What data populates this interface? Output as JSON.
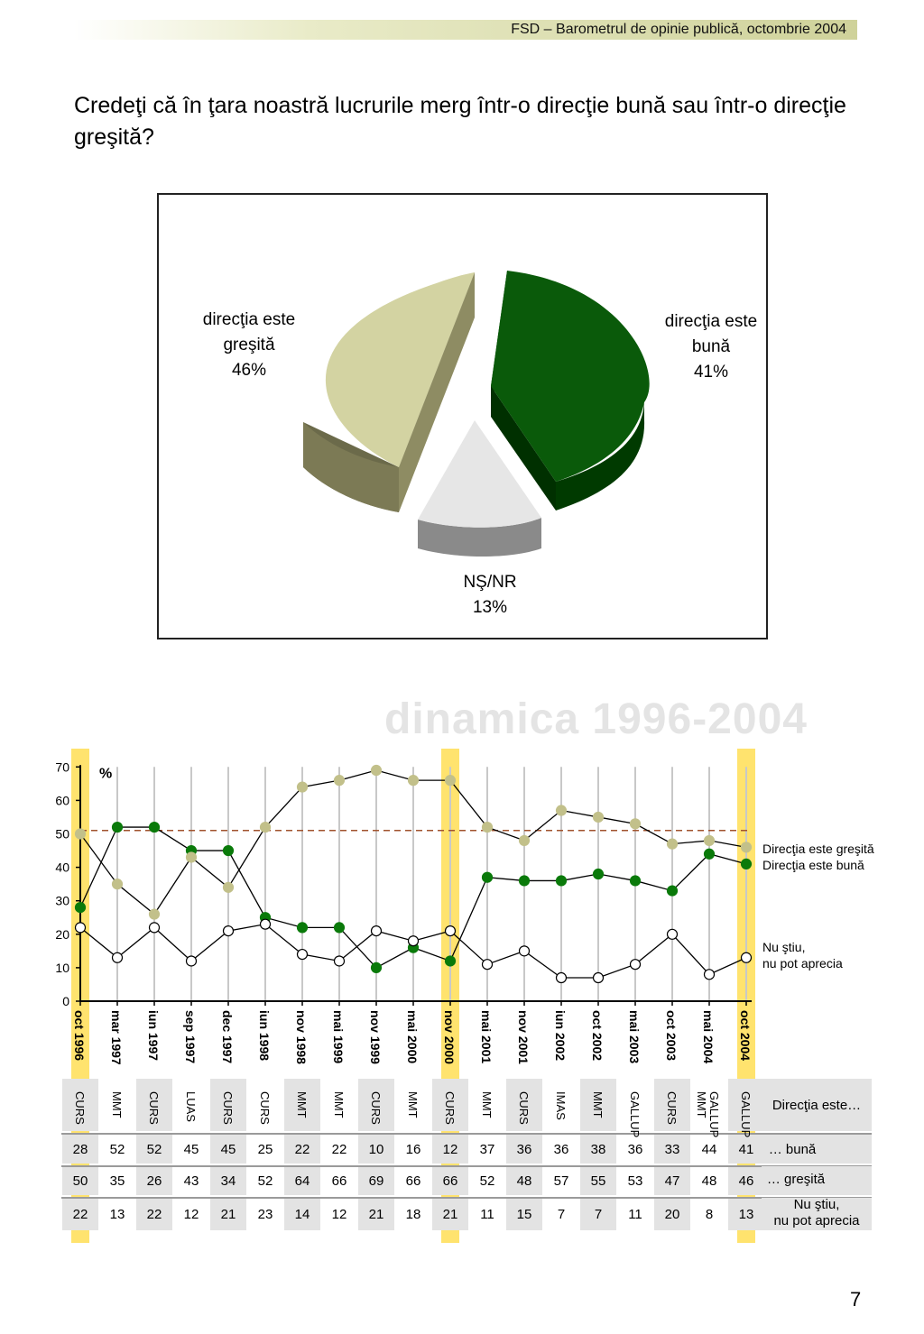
{
  "header": {
    "text": "FSD  –  Barometrul de opinie publică, octombrie 2004"
  },
  "question": "Credeţi că în ţara noastră lucrurile merg într-o direcţie bună sau într-o direcţie greşită?",
  "pie": {
    "labels": {
      "gresita": [
        "direcţia este",
        "greşită",
        "46%"
      ],
      "buna": [
        "direcţia este",
        "bună",
        "41%"
      ],
      "nsnr": [
        "NŞ/NR",
        "13%"
      ]
    }
  },
  "dynamics_title": "dinamica 1996-2004",
  "legend": {
    "gresita": "Direcţia este greşită",
    "buna": "Direcţia este bună",
    "nustiu_1": "Nu ştiu,",
    "nustiu_2": "nu pot aprecia"
  },
  "table_labels": {
    "header": "Direcţia este…",
    "buna": "… bună",
    "gresita": "… greşită",
    "nustiu_1": "Nu ştiu,",
    "nustiu_2": "nu pot aprecia"
  },
  "page_number": "7",
  "colors": {
    "gresita": "#c2c08a",
    "buna": "#0a7a0a",
    "nustiu": "#ffffff",
    "highlight": "#ffe36e",
    "reference_line": "#a0522d"
  },
  "chart_data": [
    {
      "type": "pie",
      "slices": [
        {
          "label": "direcţia este bună",
          "value": 41,
          "color": "#0a5a0a"
        },
        {
          "label": "NŞ/NR",
          "value": 13,
          "color": "#e6e6e6"
        },
        {
          "label": "direcţia este greşită",
          "value": 46,
          "color": "#cfd09b"
        }
      ]
    },
    {
      "type": "line",
      "unit_label": "%",
      "ylim": [
        0,
        70
      ],
      "yticks": [
        0,
        10,
        20,
        30,
        40,
        50,
        60,
        70
      ],
      "reference_line": 51,
      "categories": [
        "oct 1996",
        "mar 1997",
        "iun 1997",
        "sep 1997",
        "dec 1997",
        "iun 1998",
        "nov 1998",
        "mai 1999",
        "nov 1999",
        "mai 2000",
        "nov 2000",
        "mai 2001",
        "nov 2001",
        "iun 2002",
        "oct 2002",
        "mai 2003",
        "oct 2003",
        "mai 2004",
        "oct 2004"
      ],
      "highlighted": [
        "oct 1996",
        "nov 2000",
        "oct 2004"
      ],
      "sources": [
        [
          "CURS"
        ],
        [
          "MMT"
        ],
        [
          "CURS"
        ],
        [
          "LUAS"
        ],
        [
          "CURS"
        ],
        [
          "CURS"
        ],
        [
          "MMT"
        ],
        [
          "MMT"
        ],
        [
          "CURS"
        ],
        [
          "MMT"
        ],
        [
          "CURS"
        ],
        [
          "MMT"
        ],
        [
          "CURS"
        ],
        [
          "IMAS"
        ],
        [
          "MMT"
        ],
        [
          "GALLUP"
        ],
        [
          "CURS"
        ],
        [
          "GALLUP",
          "MMT"
        ],
        [
          "GALLUP"
        ]
      ],
      "series": [
        {
          "name": "Direcţia este bună",
          "values": [
            28,
            52,
            52,
            45,
            45,
            25,
            22,
            22,
            10,
            16,
            12,
            37,
            36,
            36,
            38,
            36,
            33,
            44,
            41
          ]
        },
        {
          "name": "Direcţia este greşită",
          "values": [
            50,
            35,
            26,
            43,
            34,
            52,
            64,
            66,
            69,
            66,
            66,
            52,
            48,
            57,
            55,
            53,
            47,
            48,
            46
          ]
        },
        {
          "name": "Nu ştiu, nu pot aprecia",
          "values": [
            22,
            13,
            22,
            12,
            21,
            23,
            14,
            12,
            21,
            18,
            21,
            11,
            15,
            7,
            7,
            11,
            20,
            8,
            13
          ]
        }
      ]
    }
  ]
}
